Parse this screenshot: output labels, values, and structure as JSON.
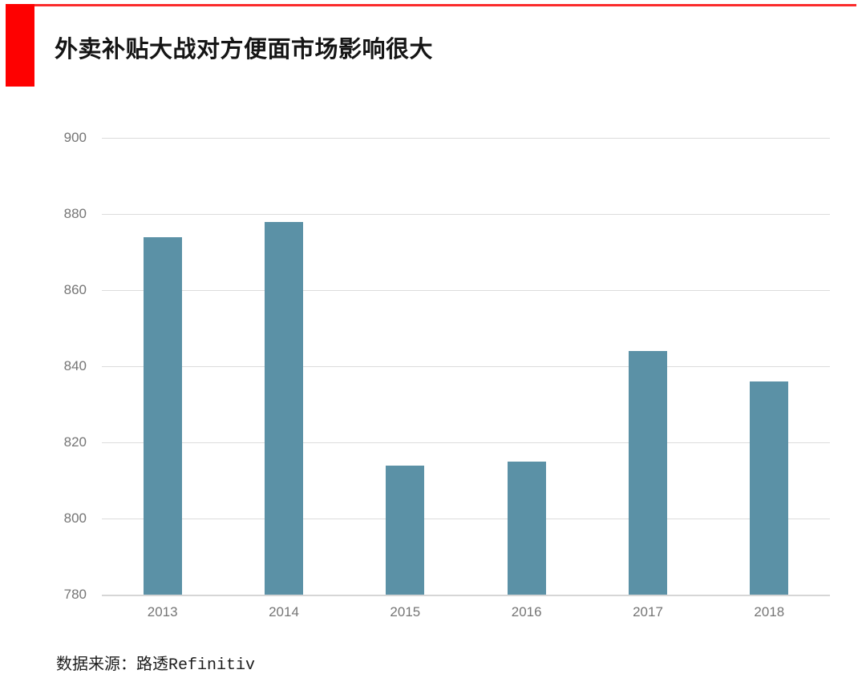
{
  "title": "外卖补贴大战对方便面市场影响很大",
  "source": "数据来源：路透Refinitiv",
  "colors": {
    "accent_red_block": "#fe0101",
    "accent_red_rule": "#fb2b2b",
    "bar": "#5b91a6",
    "gridline": "#dcdcdc",
    "axis_label": "#757575",
    "title_text": "#151515"
  },
  "chart_data": {
    "type": "bar",
    "categories": [
      "2013",
      "2014",
      "2015",
      "2016",
      "2017",
      "2018"
    ],
    "values": [
      874,
      878,
      814,
      815,
      844,
      836
    ],
    "title": "外卖补贴大战对方便面市场影响很大",
    "xlabel": "",
    "ylabel": "",
    "ylim": [
      780,
      900
    ],
    "yticks": [
      900,
      880,
      860,
      840,
      820,
      800,
      780
    ],
    "grid": true,
    "legend": false,
    "bar_color": "#5b91a6"
  }
}
